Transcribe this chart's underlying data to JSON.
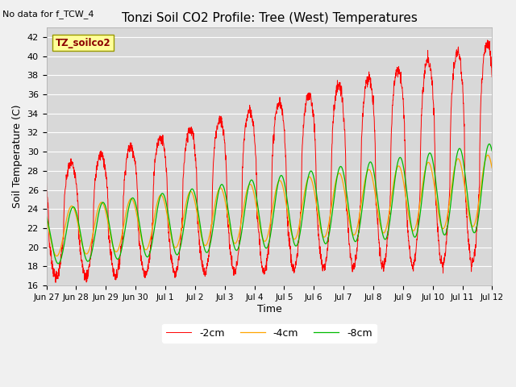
{
  "title": "Tonzi Soil CO2 Profile: Tree (West) Temperatures",
  "subtitle": "No data for f_TCW_4",
  "ylabel": "Soil Temperature (C)",
  "xlabel": "Time",
  "ylim": [
    16,
    43
  ],
  "yticks": [
    16,
    18,
    20,
    22,
    24,
    26,
    28,
    30,
    32,
    34,
    36,
    38,
    40,
    42
  ],
  "line_colors": [
    "#ff0000",
    "#ffa500",
    "#00bb00"
  ],
  "line_labels": [
    "-2cm",
    "-4cm",
    "-8cm"
  ],
  "legend_label": "TZ_soilco2",
  "fig_bg_color": "#f0f0f0",
  "plot_bg_color": "#d8d8d8",
  "grid_color": "#ffffff",
  "n_days": 15,
  "n_per_day": 144,
  "tick_labels": [
    "Jun 27",
    "Jun 28",
    "Jun 29",
    "Jun 30",
    "Jul 1",
    "Jul 2",
    "Jul 3",
    "Jul 4",
    "Jul 5",
    "Jul 6",
    "Jul 7",
    "Jul 8",
    "Jul 9",
    "Jul 10",
    "Jul 11",
    "Jul 12"
  ]
}
